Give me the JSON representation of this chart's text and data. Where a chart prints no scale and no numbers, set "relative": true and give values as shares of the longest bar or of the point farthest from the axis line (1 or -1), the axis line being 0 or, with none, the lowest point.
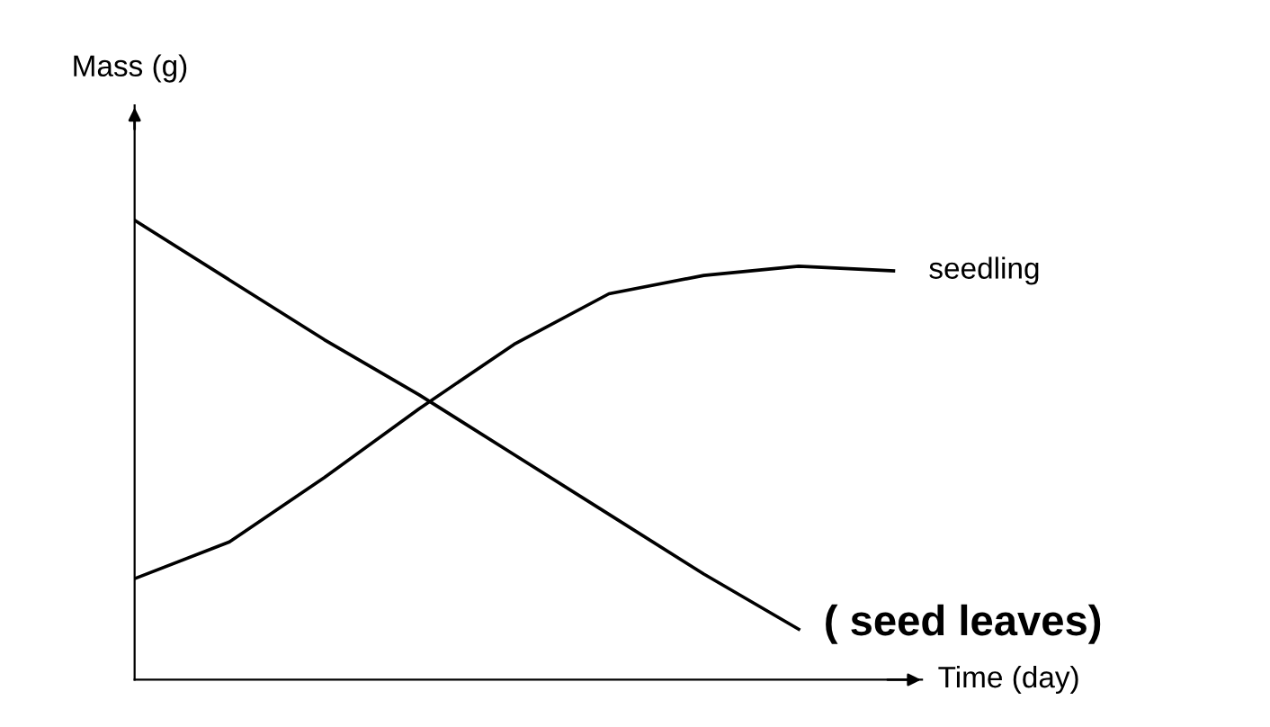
{
  "chart_data": {
    "type": "line",
    "relative": true,
    "xlabel": "Time (day)",
    "ylabel": "Mass (g)",
    "categories": [
      null,
      null,
      null,
      null,
      null,
      null,
      null,
      null,
      null
    ],
    "series": [
      {
        "name": "seedling",
        "color": "#000000",
        "values": [
          0.22,
          0.3,
          0.44,
          0.59,
          0.73,
          0.84,
          0.88,
          0.9,
          0.89
        ]
      },
      {
        "name": "( seed leaves)",
        "color": "#000000",
        "values": [
          1,
          0.87,
          0.74,
          0.62,
          0.49,
          0.36,
          0.23,
          0.11,
          null
        ]
      }
    ],
    "grid": false,
    "legend": false,
    "marker": "none",
    "line_style": "solid"
  }
}
